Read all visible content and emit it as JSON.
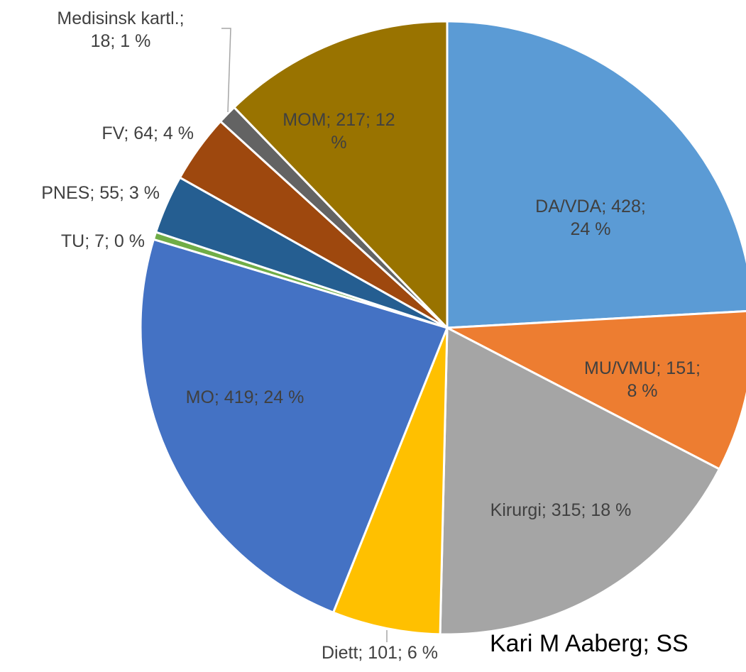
{
  "chart_data": {
    "type": "pie",
    "values": [
      428,
      151,
      315,
      101,
      419,
      7,
      55,
      64,
      18,
      217
    ],
    "value_labels": [
      "DA/VDA; 428; 24 %",
      "MU/VMU; 151; 8 %",
      "Kirurgi; 315; 18 %",
      "Diett; 101; 6 %",
      "MO; 419; 24 %",
      "TU; 7; 0 %",
      "PNES; 55; 3 %",
      "FV; 64; 4 %",
      "Medisinsk kartl.; 18; 1 %",
      "MOM; 217; 12 %"
    ],
    "colors": [
      "#5b9bd5",
      "#ed7d31",
      "#a5a5a5",
      "#ffc000",
      "#4472c4",
      "#70ad47",
      "#255e91",
      "#9e480e",
      "#636363",
      "#997300"
    ],
    "annotation": "Kari M Aaberg; SS"
  }
}
